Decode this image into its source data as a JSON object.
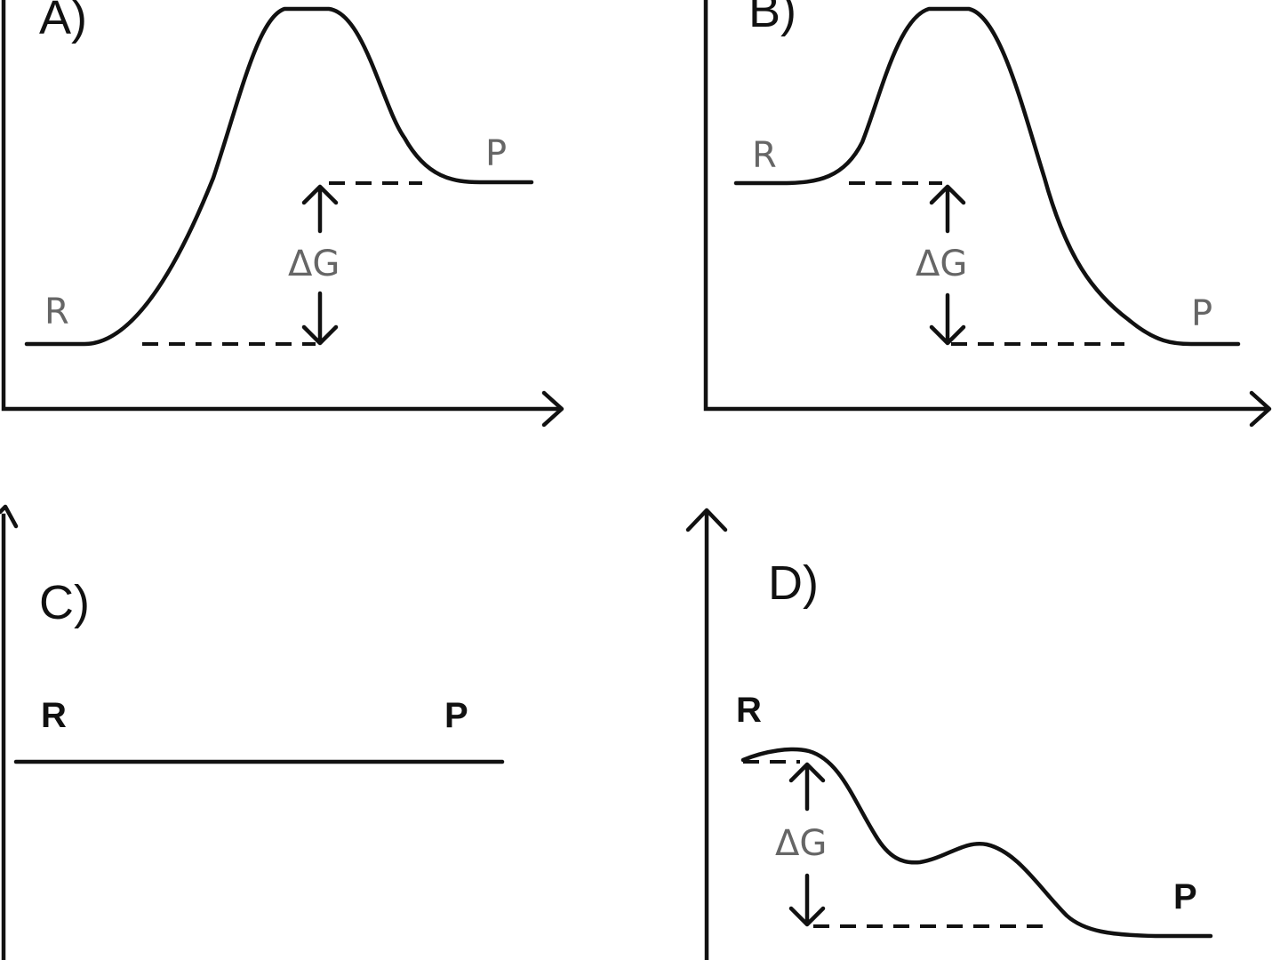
{
  "panels": {
    "a": {
      "letter": "A)",
      "reactant": "R",
      "product": "P",
      "delta": "ΔG"
    },
    "b": {
      "letter": "B)",
      "reactant": "R",
      "product": "P",
      "delta": "ΔG"
    },
    "c": {
      "letter": "C)",
      "reactant": "R",
      "product": "P"
    },
    "d": {
      "letter": "D)",
      "reactant": "R",
      "product": "P",
      "delta": "ΔG"
    }
  },
  "colors": {
    "line": "#111111",
    "label_gray": "#666666",
    "background": "#ffffff"
  }
}
